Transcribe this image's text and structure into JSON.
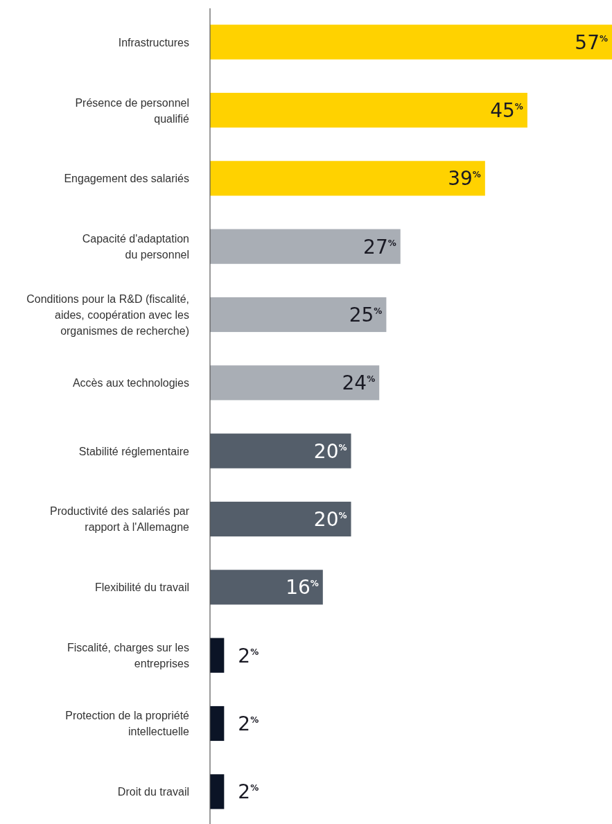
{
  "chart_data": {
    "type": "bar",
    "orientation": "horizontal",
    "categories": [
      "Infrastructures",
      "Présence de personnel\nqualifié",
      "Engagement des salariés",
      "Capacité d'adaptation\ndu personnel",
      "Conditions pour la R&D (fiscalité,\naides, coopération avec les\norganismes de recherche)",
      "Accès aux technologies",
      "Stabilité réglementaire",
      "Productivité des salariés par\nrapport à l'Allemagne",
      "Flexibilité du travail",
      "Fiscalité, charges sur les\nentreprises",
      "Protection de la propriété\nintellectuelle",
      "Droit du travail"
    ],
    "values": [
      57,
      45,
      39,
      27,
      25,
      24,
      20,
      20,
      16,
      2,
      2,
      2
    ],
    "colors": [
      "#ffd200",
      "#ffd200",
      "#ffd200",
      "#a9aeb5",
      "#a9aeb5",
      "#a9aeb5",
      "#545e6a",
      "#545e6a",
      "#545e6a",
      "#0b1426",
      "#0b1426",
      "#0b1426"
    ],
    "value_labels": [
      "57$^{%}$",
      "45$^{%}$",
      "39$^{%}$",
      "27$^{%}$",
      "25$^{%}$",
      "24$^{%}$",
      "20$^{%}$",
      "20$^{%}$",
      "16$^{%}$",
      "2$^{%}$",
      "2$^{%}$",
      "2$^{%}$"
    ]
  }
}
